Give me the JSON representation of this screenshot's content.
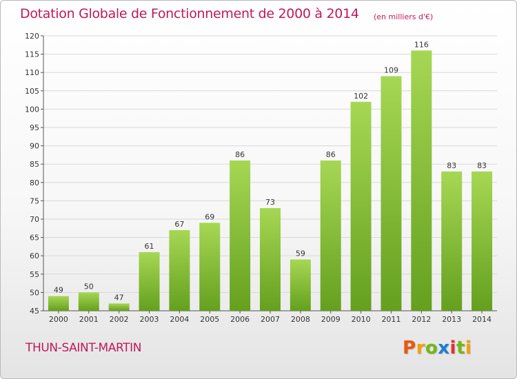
{
  "title": "Dotation Globale de Fonctionnement de 2000 à 2014",
  "subtitle": "(en milliers d'€)",
  "commune": "THUN-SAINT-MARTIN",
  "logo": {
    "letters": [
      "P",
      "r",
      "o",
      "x",
      "i",
      "t",
      "i"
    ],
    "colors": [
      "#e8590c",
      "#f59f00",
      "#74b816",
      "#1c7ed6",
      "#e03131",
      "#74b816",
      "#f59f00"
    ]
  },
  "colors": {
    "bar_light": "#a6d754",
    "bar_dark": "#64a01e",
    "accent": "#c0185a",
    "grid": "#d7d7d7"
  },
  "chart_data": {
    "type": "bar",
    "categories": [
      "2000",
      "2001",
      "2002",
      "2003",
      "2004",
      "2005",
      "2006",
      "2007",
      "2008",
      "2009",
      "2010",
      "2011",
      "2012",
      "2013",
      "2014"
    ],
    "values": [
      49,
      50,
      47,
      61,
      67,
      69,
      86,
      73,
      59,
      86,
      102,
      109,
      116,
      83,
      83
    ],
    "ylim": [
      45,
      120
    ],
    "yticks": [
      45,
      50,
      55,
      60,
      65,
      70,
      75,
      80,
      85,
      90,
      95,
      100,
      105,
      110,
      115,
      120
    ],
    "grid": true
  }
}
